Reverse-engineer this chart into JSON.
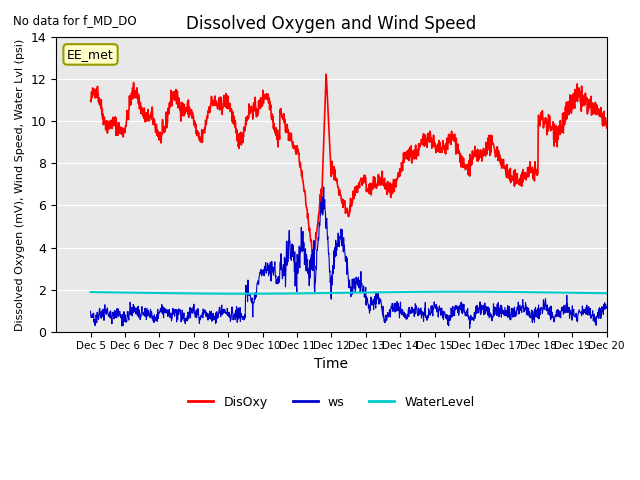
{
  "title": "Dissolved Oxygen and Wind Speed",
  "top_left_text": "No data for f_MD_DO",
  "xlabel": "Time",
  "ylabel": "Dissolved Oxygen (mV), Wind Speed, Water Lvl (psi)",
  "ylim": [
    0,
    14
  ],
  "xlim": [
    4,
    20
  ],
  "xtick_labels": [
    "Dec 5",
    "Dec 6",
    "Dec 7",
    "Dec 8",
    "Dec 9",
    "Dec 10",
    "Dec 11",
    "Dec 12",
    "Dec 13",
    "Dec 14",
    "Dec 15",
    "Dec 16",
    "Dec 17",
    "Dec 18",
    "Dec 19",
    "Dec 20"
  ],
  "xtick_positions": [
    5,
    6,
    7,
    8,
    9,
    10,
    11,
    12,
    13,
    14,
    15,
    16,
    17,
    18,
    19,
    20
  ],
  "annotation_box": "EE_met",
  "legend_labels": [
    "DisOxy",
    "ws",
    "WaterLevel"
  ],
  "legend_colors": [
    "#ff0000",
    "#0000cc",
    "#00cccc"
  ],
  "water_level": 1.85,
  "plot_bg_color": "#e8e8e8"
}
